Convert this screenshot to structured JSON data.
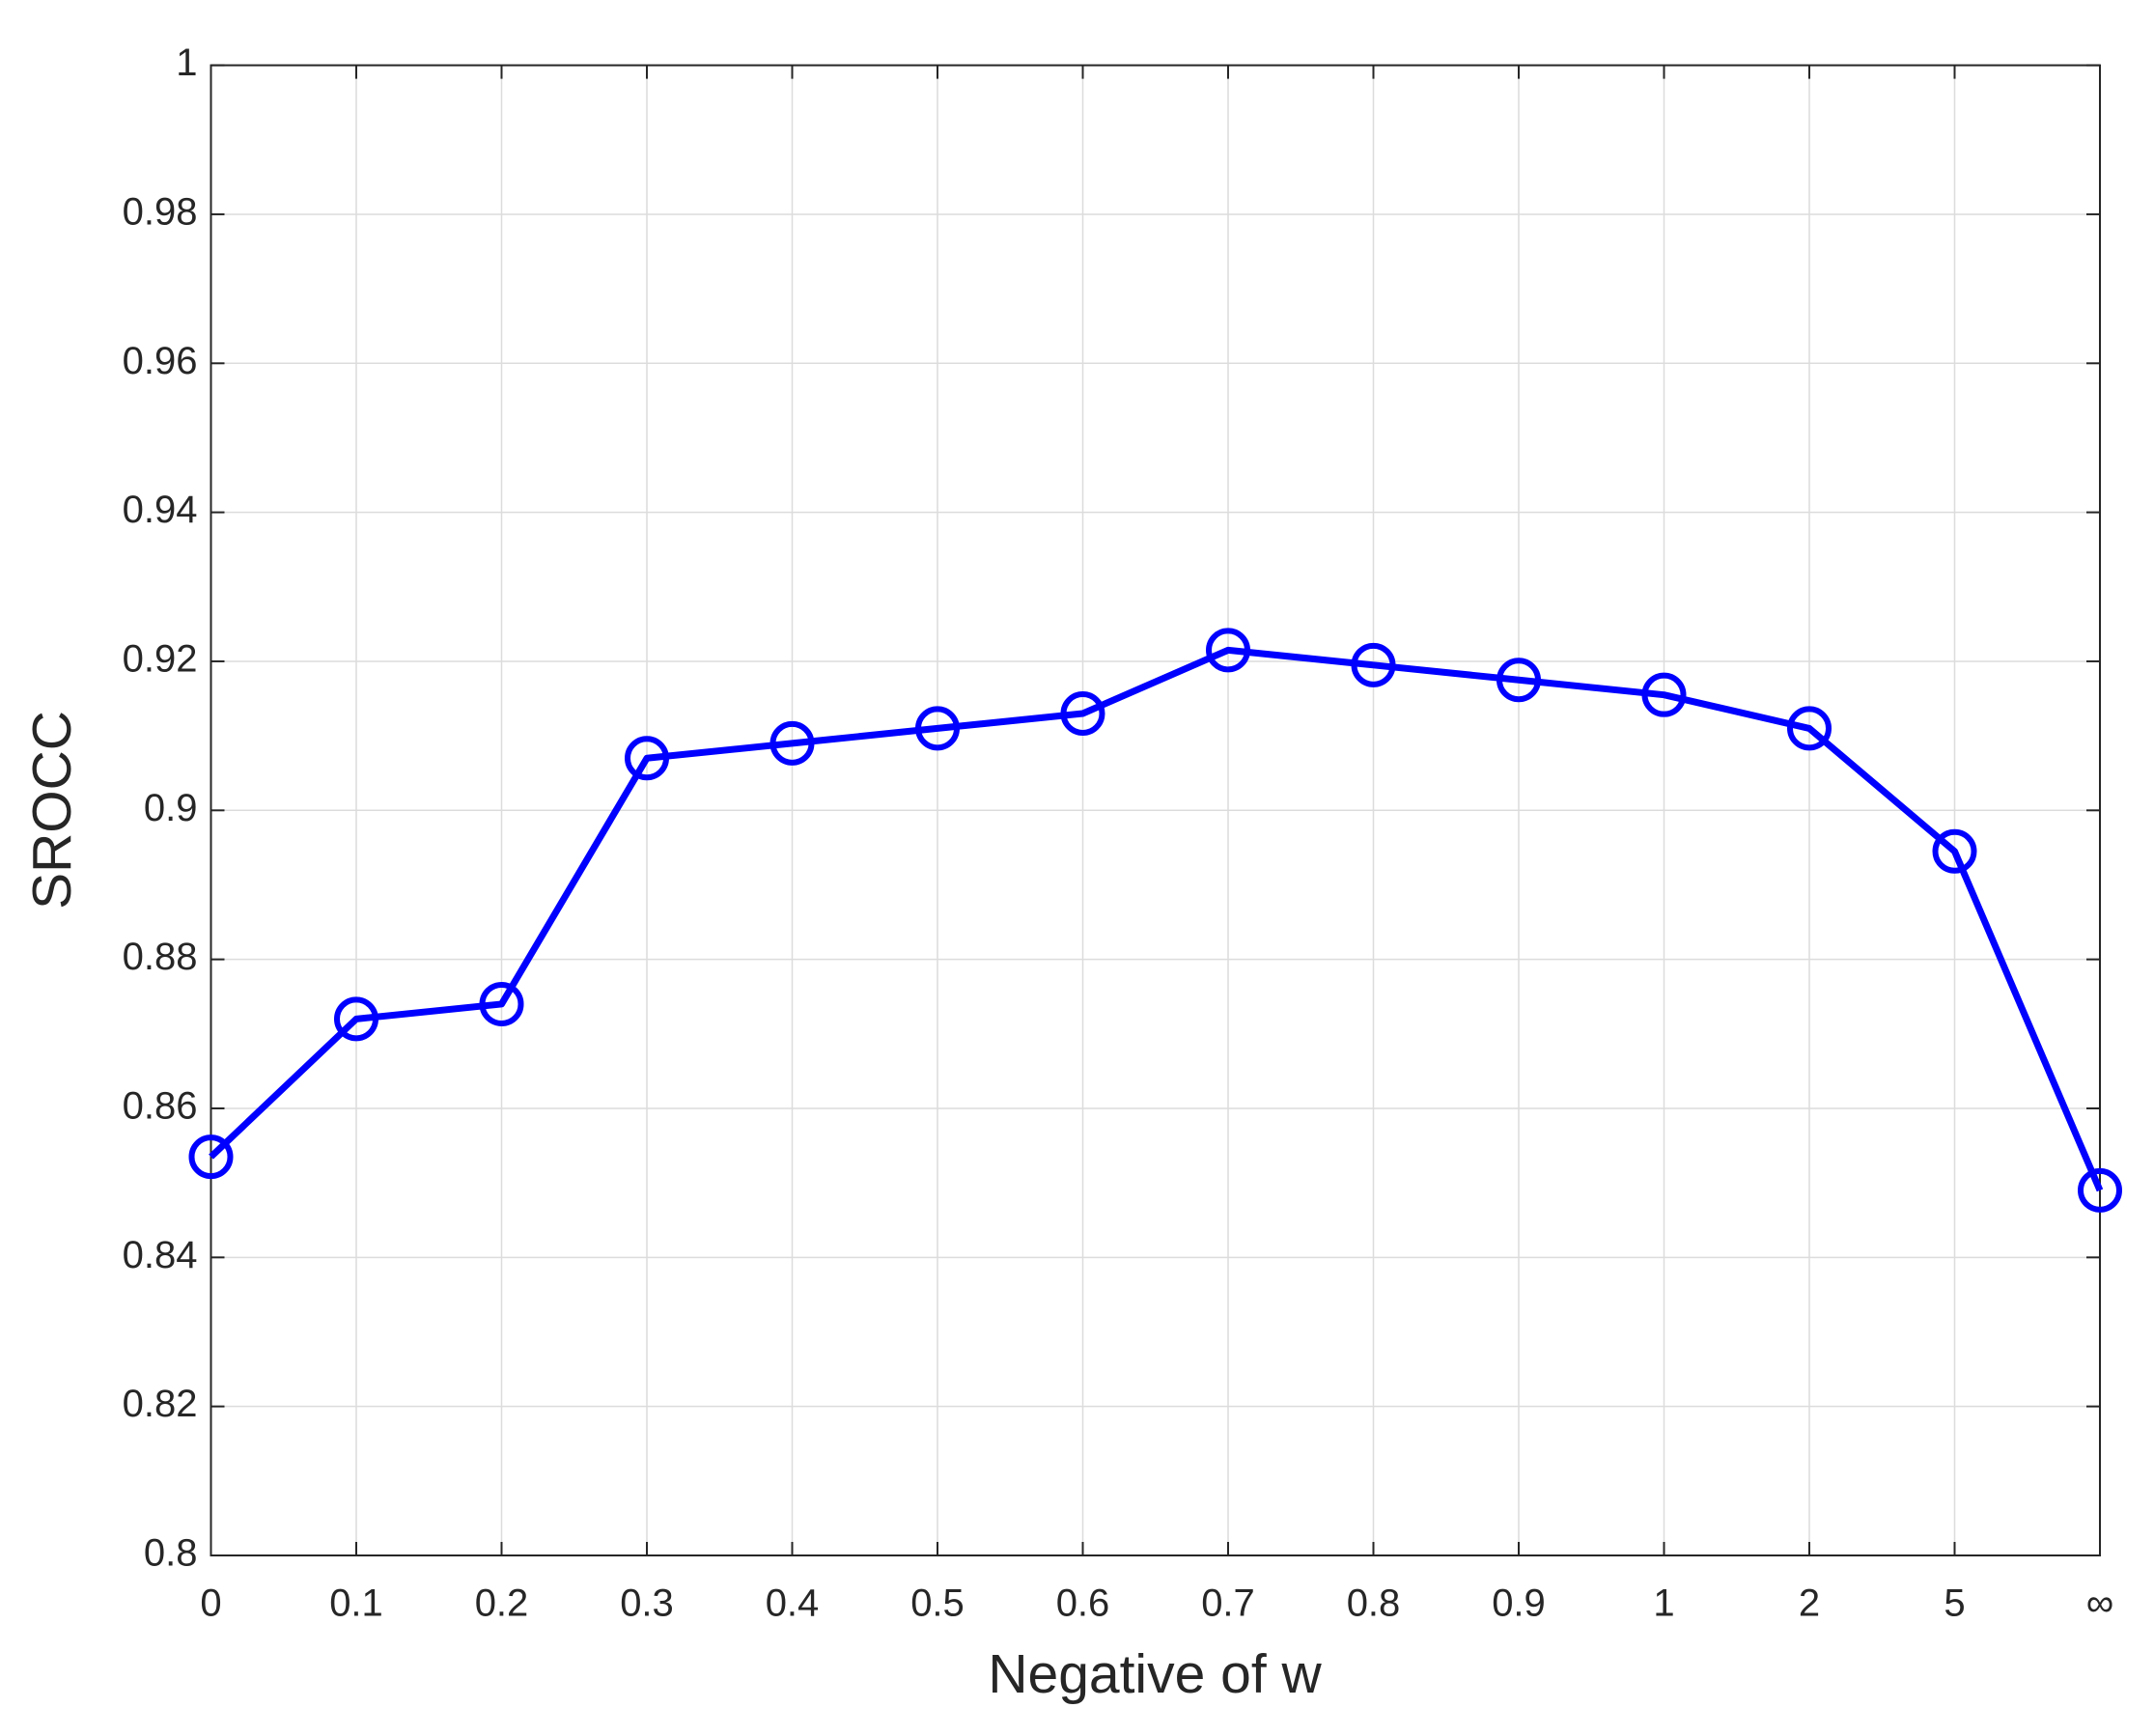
{
  "chart_data": {
    "type": "line",
    "xlabel": "Negative of w",
    "ylabel": "SROCC",
    "categories": [
      "0",
      "0.1",
      "0.2",
      "0.3",
      "0.4",
      "0.5",
      "0.6",
      "0.7",
      "0.8",
      "0.9",
      "1",
      "2",
      "5",
      "∞"
    ],
    "series": [
      {
        "color": "#0000ff",
        "values": [
          0.8535,
          0.872,
          0.874,
          0.907,
          0.909,
          0.911,
          0.913,
          0.9215,
          0.9195,
          0.9175,
          0.9155,
          0.911,
          0.8945,
          0.849
        ]
      }
    ],
    "ylim": [
      0.8,
      1
    ],
    "yticks": [
      0.8,
      0.82,
      0.84,
      0.86,
      0.88,
      0.9,
      0.92,
      0.94,
      0.96,
      0.98,
      1
    ],
    "grid": true
  }
}
